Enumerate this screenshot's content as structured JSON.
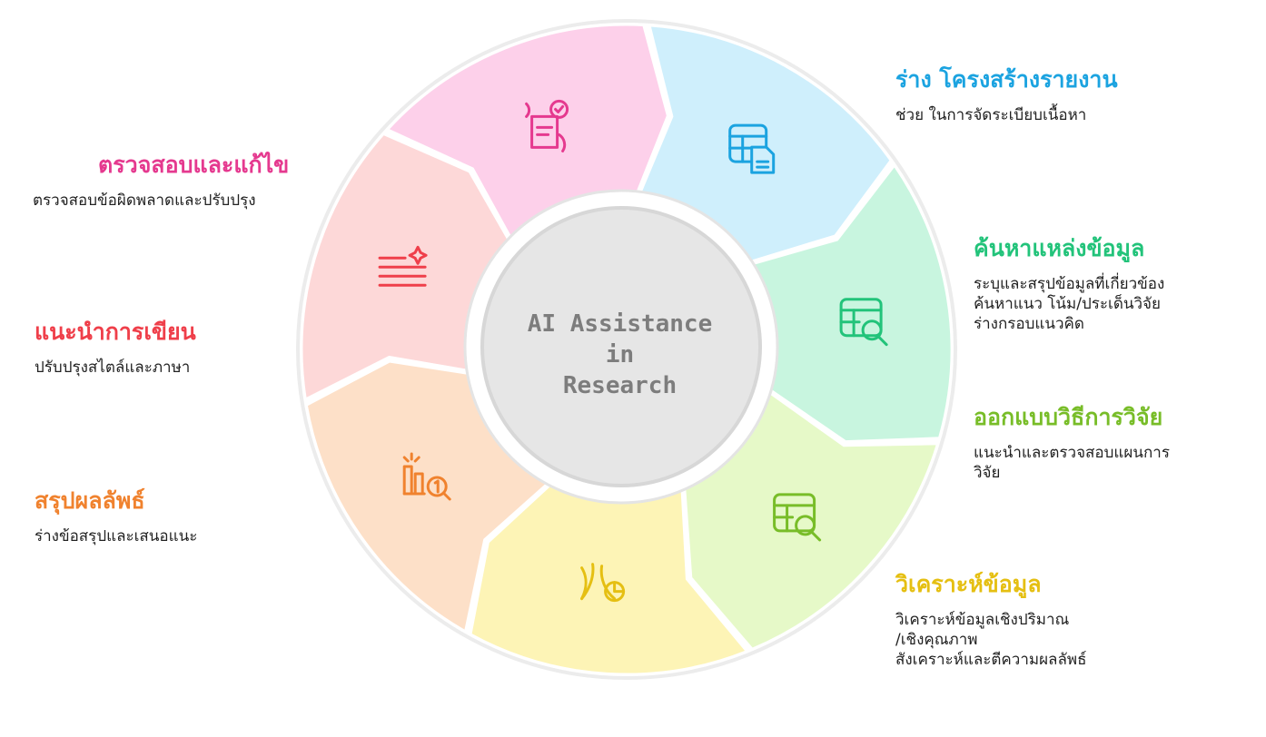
{
  "center": {
    "title": "AI Assistance in\nResearch"
  },
  "segments": [
    {
      "id": "draft-report-structure",
      "title": "ร่าง โครงสร้างรายงาน",
      "description": "ช่วย ในการจัดระเบียบเนื้อหา",
      "color": "#1ba3e0",
      "fill": "#cfeffc",
      "icon": "table-document-icon"
    },
    {
      "id": "search-sources",
      "title": "ค้นหาแหล่งข้อมูล",
      "description": "ระบุและสรุปข้อมูลที่เกี่ยวข้อง\nค้นหาแนว โน้ม/ประเด็นวิจัย\nร่างกรอบแนวคิด",
      "color": "#22c37a",
      "fill": "#c8f5df",
      "icon": "table-search-icon"
    },
    {
      "id": "design-methodology",
      "title": "ออกแบบวิธีการวิจัย",
      "description": "แนะนำและตรวจสอบแผนการ\nวิจัย",
      "color": "#78bd28",
      "fill": "#e6f9c8",
      "icon": "table-search-icon"
    },
    {
      "id": "analyze-data",
      "title": "วิเคราะห์ข้อมูล",
      "description": "วิเคราะห์ข้อมูลเชิงปริมาณ\n/เชิงคุณภาพ\nสังเคราะห์และตีความผลลัพธ์",
      "color": "#e5bf12",
      "fill": "#fdf4b6",
      "icon": "chart-sparkle-icon"
    },
    {
      "id": "summarize-results",
      "title": "สรุปผลลัพธ์",
      "description": "ร่างข้อสรุปและเสนอแนะ",
      "color": "#f0822e",
      "fill": "#fde0c8",
      "icon": "bar-chart-search-icon"
    },
    {
      "id": "writing-advice",
      "title": "แนะนำการเขียน",
      "description": "ปรับปรุงสไตล์และภาษา",
      "color": "#ef3f4a",
      "fill": "#fdd8d8",
      "icon": "text-sparkle-icon"
    },
    {
      "id": "review-and-revise",
      "title": "ตรวจสอบและแก้ไข",
      "description": "ตรวจสอบข้อผิดพลาดและปรับปรุง",
      "color": "#e5398f",
      "fill": "#fdd0ea",
      "icon": "checklist-edit-icon"
    }
  ]
}
